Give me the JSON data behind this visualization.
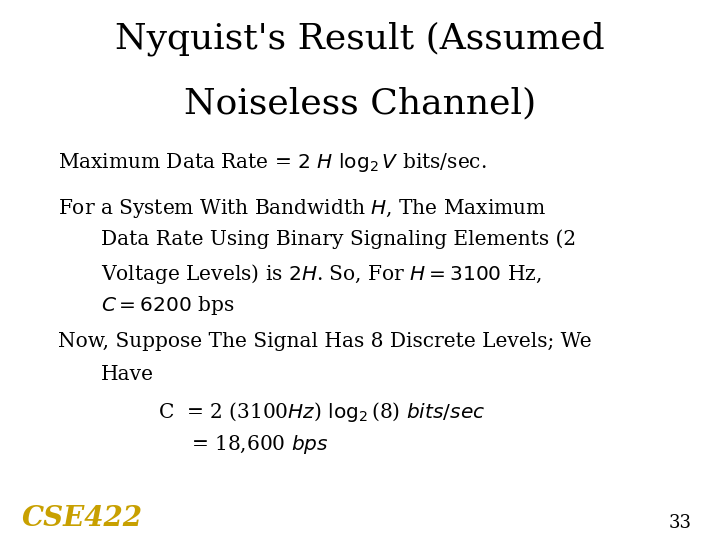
{
  "title_line1": "Nyquist's Result (Assumed",
  "title_line2": "Noiseless Channel)",
  "background_color": "#ffffff",
  "text_color": "#000000",
  "title_color": "#000000",
  "watermark_color": "#c8a000",
  "page_number": "33",
  "font_family": "DejaVu Serif",
  "title_fontsize": 26,
  "body_fontsize": 14.5
}
